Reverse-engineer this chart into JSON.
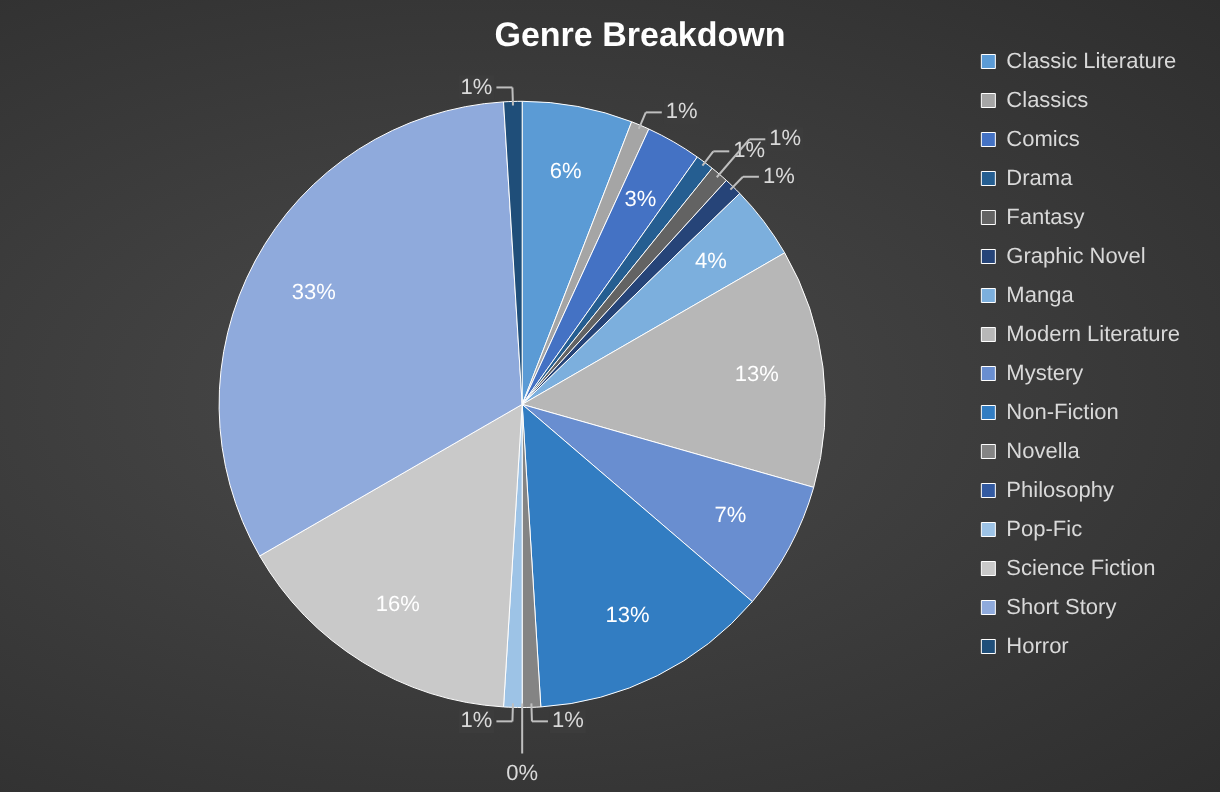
{
  "chart_data": {
    "type": "pie",
    "title": "Genre Breakdown",
    "categories": [
      "Classic Literature",
      "Classics",
      "Comics",
      "Drama",
      "Fantasy",
      "Graphic Novel",
      "Manga",
      "Modern Literature",
      "Mystery",
      "Non-Fiction",
      "Novella",
      "Philosophy",
      "Pop-Fic",
      "Science Fiction",
      "Short Story",
      "Horror"
    ],
    "values": [
      6,
      1,
      3,
      1,
      1,
      1,
      4,
      13,
      7,
      13,
      1,
      0,
      1,
      16,
      33,
      1
    ],
    "colors": [
      "#5b9bd5",
      "#a5a5a5",
      "#4472c4",
      "#255e91",
      "#636363",
      "#264478",
      "#7cafdd",
      "#b7b7b7",
      "#698ed0",
      "#327dc2",
      "#848484",
      "#335aa1",
      "#9dc3e6",
      "#c9c9c9",
      "#8faadc",
      "#1f4e79"
    ],
    "value_labels": [
      "6%",
      "1%",
      "3%",
      "1%",
      "1%",
      "1%",
      "4%",
      "13%",
      "7%",
      "13%",
      "1%",
      "0%",
      "1%",
      "16%",
      "33%",
      "1%"
    ],
    "legend": "right"
  }
}
